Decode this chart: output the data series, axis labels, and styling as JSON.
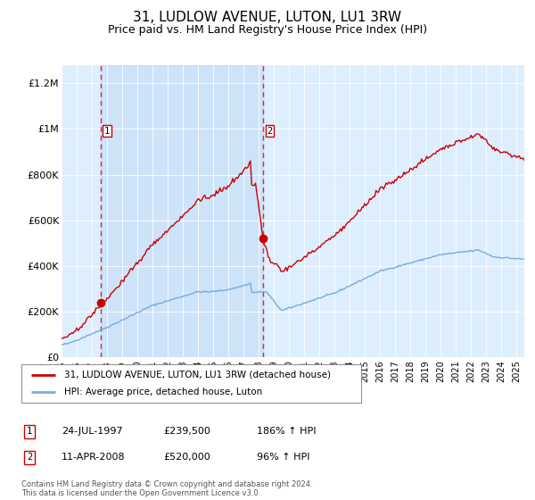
{
  "title": "31, LUDLOW AVENUE, LUTON, LU1 3RW",
  "subtitle": "Price paid vs. HM Land Registry's House Price Index (HPI)",
  "title_fontsize": 11,
  "subtitle_fontsize": 9,
  "background_color": "#ffffff",
  "plot_bg_color": "#ddeeff",
  "red_line_color": "#cc0000",
  "blue_line_color": "#7aacdc",
  "transaction1_date": 1997.56,
  "transaction1_value": 239500,
  "transaction2_date": 2008.28,
  "transaction2_value": 520000,
  "ylim": [
    0,
    1280000
  ],
  "xlim_start": 1995.0,
  "xlim_end": 2025.5,
  "footnote": "Contains HM Land Registry data © Crown copyright and database right 2024.\nThis data is licensed under the Open Government Licence v3.0.",
  "legend_entries": [
    "31, LUDLOW AVENUE, LUTON, LU1 3RW (detached house)",
    "HPI: Average price, detached house, Luton"
  ],
  "table_rows": [
    {
      "num": "1",
      "date": "24-JUL-1997",
      "price": "£239,500",
      "hpi": "186% ↑ HPI"
    },
    {
      "num": "2",
      "date": "11-APR-2008",
      "price": "£520,000",
      "hpi": "96% ↑ HPI"
    }
  ]
}
